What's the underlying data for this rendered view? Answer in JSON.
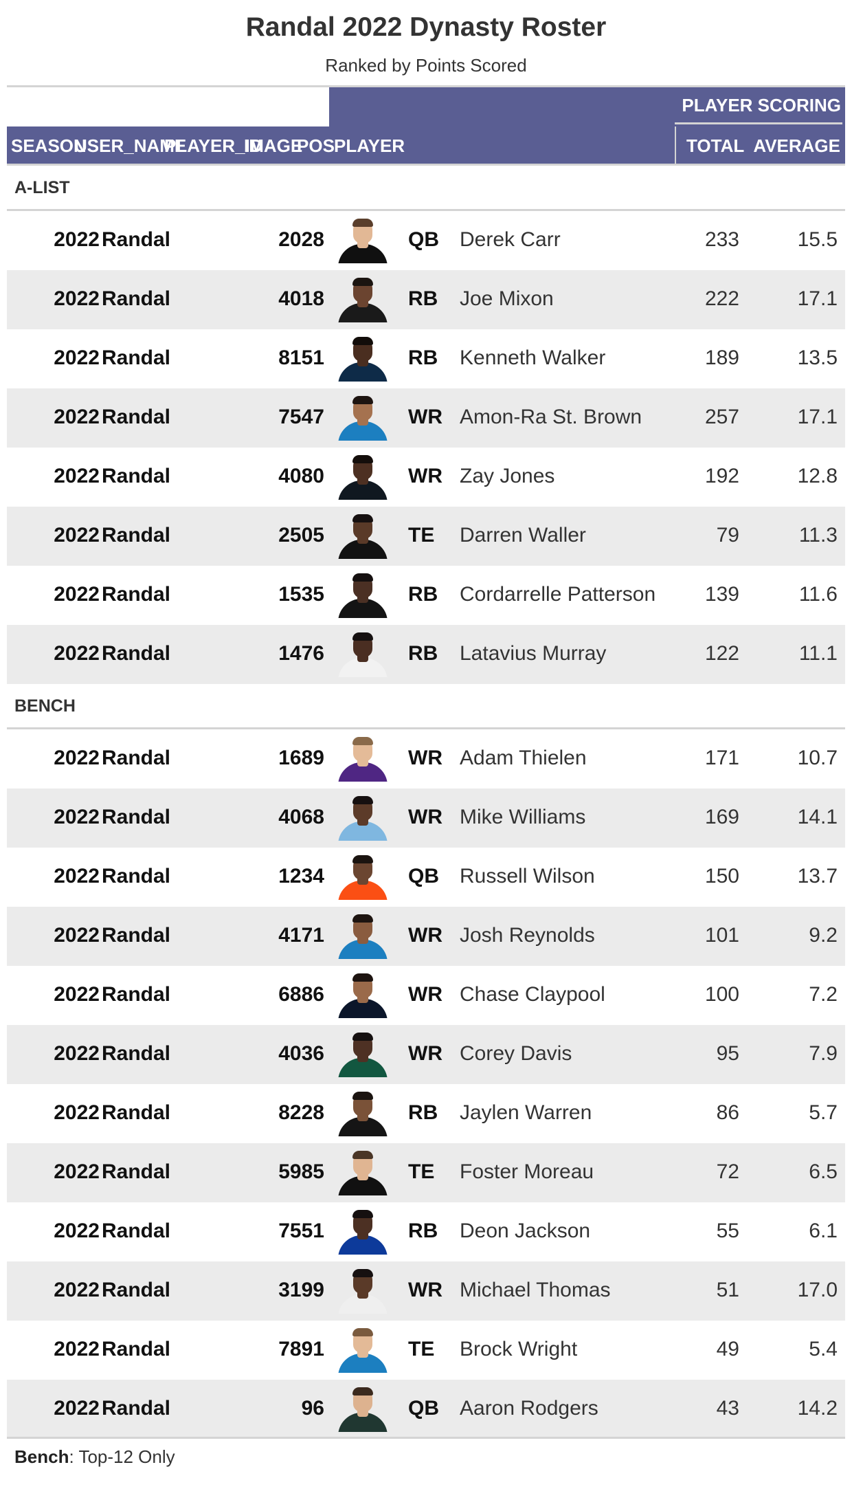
{
  "title": "Randal 2022 Dynasty Roster",
  "subtitle": "Ranked by Points Scored",
  "spanner_label": "PLAYER SCORING",
  "columns": {
    "season": "SEASON",
    "user_name": "USER_NAME",
    "player_id": "PLAYER_ID",
    "image": "IMAGE",
    "pos": "POS",
    "player": "PLAYER",
    "total": "TOTAL",
    "average": "AVERAGE"
  },
  "groups": [
    {
      "label": "A-LIST",
      "rows": [
        {
          "season": "2022",
          "user": "Randal",
          "id": "2028",
          "pos": "QB",
          "player": "Derek Carr",
          "total": "233",
          "avg": "15.5",
          "jersey": "#101010",
          "skin": "#e2b895",
          "hair": "#5a3e2b"
        },
        {
          "season": "2022",
          "user": "Randal",
          "id": "4018",
          "pos": "RB",
          "player": "Joe Mixon",
          "total": "222",
          "avg": "17.1",
          "jersey": "#1a1a1a",
          "skin": "#6b4430",
          "hair": "#1b1410"
        },
        {
          "season": "2022",
          "user": "Randal",
          "id": "8151",
          "pos": "RB",
          "player": "Kenneth Walker",
          "total": "189",
          "avg": "13.5",
          "jersey": "#0e2b48",
          "skin": "#4a2e20",
          "hair": "#120d0a"
        },
        {
          "season": "2022",
          "user": "Randal",
          "id": "7547",
          "pos": "WR",
          "player": "Amon-Ra St. Brown",
          "total": "257",
          "avg": "17.1",
          "jersey": "#1c7fc0",
          "skin": "#a5724f",
          "hair": "#1d1410"
        },
        {
          "season": "2022",
          "user": "Randal",
          "id": "4080",
          "pos": "WR",
          "player": "Zay Jones",
          "total": "192",
          "avg": "12.8",
          "jersey": "#101820",
          "skin": "#4d3022",
          "hair": "#140e0b"
        },
        {
          "season": "2022",
          "user": "Randal",
          "id": "2505",
          "pos": "TE",
          "player": "Darren Waller",
          "total": "79",
          "avg": "11.3",
          "jersey": "#121212",
          "skin": "#5a3a28",
          "hair": "#161010"
        },
        {
          "season": "2022",
          "user": "Randal",
          "id": "1535",
          "pos": "RB",
          "player": "Cordarrelle Patterson",
          "total": "139",
          "avg": "11.6",
          "jersey": "#141414",
          "skin": "#4b3024",
          "hair": "#151010"
        },
        {
          "season": "2022",
          "user": "Randal",
          "id": "1476",
          "pos": "RB",
          "player": "Latavius Murray",
          "total": "122",
          "avg": "11.1",
          "jersey": "#f2f2f2",
          "skin": "#4a2e22",
          "hair": "#151010"
        }
      ]
    },
    {
      "label": "BENCH",
      "rows": [
        {
          "season": "2022",
          "user": "Randal",
          "id": "1689",
          "pos": "WR",
          "player": "Adam Thielen",
          "total": "171",
          "avg": "10.7",
          "jersey": "#4f2683",
          "skin": "#e4bb98",
          "hair": "#8a6a4a"
        },
        {
          "season": "2022",
          "user": "Randal",
          "id": "4068",
          "pos": "WR",
          "player": "Mike Williams",
          "total": "169",
          "avg": "14.1",
          "jersey": "#7fb7e0",
          "skin": "#5c3b29",
          "hair": "#161010"
        },
        {
          "season": "2022",
          "user": "Randal",
          "id": "1234",
          "pos": "QB",
          "player": "Russell Wilson",
          "total": "150",
          "avg": "13.7",
          "jersey": "#fb4f14",
          "skin": "#6b4631",
          "hair": "#1b1410"
        },
        {
          "season": "2022",
          "user": "Randal",
          "id": "4171",
          "pos": "WR",
          "player": "Josh Reynolds",
          "total": "101",
          "avg": "9.2",
          "jersey": "#1c7fc0",
          "skin": "#8a5c3f",
          "hair": "#1d1410"
        },
        {
          "season": "2022",
          "user": "Randal",
          "id": "6886",
          "pos": "WR",
          "player": "Chase Claypool",
          "total": "100",
          "avg": "7.2",
          "jersey": "#0b162a",
          "skin": "#9a6a4a",
          "hair": "#1d1410"
        },
        {
          "season": "2022",
          "user": "Randal",
          "id": "4036",
          "pos": "WR",
          "player": "Corey Davis",
          "total": "95",
          "avg": "7.9",
          "jersey": "#125740",
          "skin": "#4e3124",
          "hair": "#151010"
        },
        {
          "season": "2022",
          "user": "Randal",
          "id": "8228",
          "pos": "RB",
          "player": "Jaylen Warren",
          "total": "86",
          "avg": "5.7",
          "jersey": "#151515",
          "skin": "#7a5238",
          "hair": "#1b1410"
        },
        {
          "season": "2022",
          "user": "Randal",
          "id": "5985",
          "pos": "TE",
          "player": "Foster Moreau",
          "total": "72",
          "avg": "6.5",
          "jersey": "#111111",
          "skin": "#e0b592",
          "hair": "#4a3526"
        },
        {
          "season": "2022",
          "user": "Randal",
          "id": "7551",
          "pos": "RB",
          "player": "Deon Jackson",
          "total": "55",
          "avg": "6.1",
          "jersey": "#0d3a9a",
          "skin": "#4c3023",
          "hair": "#151010"
        },
        {
          "season": "2022",
          "user": "Randal",
          "id": "3199",
          "pos": "WR",
          "player": "Michael Thomas",
          "total": "51",
          "avg": "17.0",
          "jersey": "#efefef",
          "skin": "#5a3a28",
          "hair": "#161010"
        },
        {
          "season": "2022",
          "user": "Randal",
          "id": "7891",
          "pos": "TE",
          "player": "Brock Wright",
          "total": "49",
          "avg": "5.4",
          "jersey": "#1c7fc0",
          "skin": "#e3ba97",
          "hair": "#7a5a3e"
        },
        {
          "season": "2022",
          "user": "Randal",
          "id": "96",
          "pos": "QB",
          "player": "Aaron Rodgers",
          "total": "43",
          "avg": "14.2",
          "jersey": "#203731",
          "skin": "#ddb28f",
          "hair": "#3b2a1e"
        }
      ]
    }
  ],
  "footnote": {
    "bold": "Bench",
    "text": ": Top-12 Only"
  },
  "colors": {
    "header_bg": "#5a5e93",
    "row_alt": "#ebebeb",
    "rule": "#d4d4d4"
  }
}
